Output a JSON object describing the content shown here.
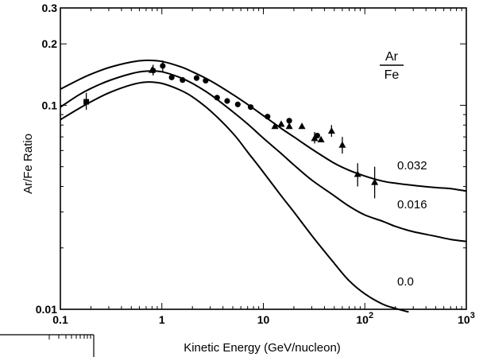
{
  "chart_data": {
    "type": "line",
    "title": "",
    "xlabel": "Kinetic Energy (GeV/nucleon)",
    "ylabel": "Ar/Fe Ratio",
    "x_scale": "log",
    "y_scale": "log",
    "xlim": [
      0.1,
      1000
    ],
    "ylim": [
      0.01,
      0.3
    ],
    "grid": false,
    "legend": {
      "text_num": "Ar",
      "text_den": "Fe",
      "placement": "top-right"
    },
    "x_tick_labels": [
      {
        "value": 0.1,
        "base": "0.1",
        "exp": ""
      },
      {
        "value": 1,
        "base": "1",
        "exp": ""
      },
      {
        "value": 10,
        "base": "10",
        "exp": ""
      },
      {
        "value": 100,
        "base": "10",
        "exp": "2"
      },
      {
        "value": 1000,
        "base": "10",
        "exp": "3"
      }
    ],
    "y_tick_labels": [
      {
        "value": 0.01,
        "label": "0.01"
      },
      {
        "value": 0.1,
        "label": "0.1"
      },
      {
        "value": 0.2,
        "label": "0.2"
      },
      {
        "value": 0.3,
        "label": "0.3"
      }
    ],
    "series": [
      {
        "name": "0.032",
        "x": [
          0.1,
          0.15,
          0.2,
          0.3,
          0.5,
          0.7,
          1,
          1.5,
          2,
          3,
          5,
          7,
          10,
          15,
          20,
          30,
          50,
          70,
          100,
          150,
          200,
          300,
          500,
          700,
          1000
        ],
        "y": [
          0.12,
          0.133,
          0.142,
          0.153,
          0.163,
          0.166,
          0.164,
          0.155,
          0.146,
          0.132,
          0.113,
          0.101,
          0.089,
          0.077,
          0.07,
          0.061,
          0.052,
          0.048,
          0.045,
          0.0425,
          0.0415,
          0.0405,
          0.0395,
          0.039,
          0.038
        ]
      },
      {
        "name": "0.016",
        "x": [
          0.1,
          0.15,
          0.2,
          0.3,
          0.5,
          0.7,
          1,
          1.5,
          2,
          3,
          5,
          7,
          10,
          15,
          20,
          30,
          50,
          70,
          100,
          150,
          200,
          300,
          500,
          700,
          1000
        ],
        "y": [
          0.098,
          0.112,
          0.121,
          0.132,
          0.143,
          0.147,
          0.146,
          0.137,
          0.128,
          0.113,
          0.093,
          0.081,
          0.069,
          0.058,
          0.051,
          0.043,
          0.036,
          0.032,
          0.029,
          0.027,
          0.0255,
          0.024,
          0.0228,
          0.022,
          0.0215
        ]
      },
      {
        "name": "0.0",
        "x": [
          0.1,
          0.15,
          0.2,
          0.3,
          0.5,
          0.7,
          1,
          1.5,
          2,
          3,
          5,
          7,
          10,
          15,
          20,
          30,
          50,
          70,
          100,
          150,
          200,
          270
        ],
        "y": [
          0.085,
          0.096,
          0.104,
          0.115,
          0.126,
          0.13,
          0.128,
          0.119,
          0.11,
          0.094,
          0.073,
          0.059,
          0.047,
          0.036,
          0.03,
          0.023,
          0.0168,
          0.0138,
          0.0119,
          0.0106,
          0.0101,
          0.0097
        ]
      }
    ],
    "markers": [
      {
        "shape": "square",
        "x": 0.18,
        "y": 0.104,
        "err": [
          0.095,
          0.115
        ]
      },
      {
        "shape": "circle",
        "x": 0.82,
        "y": 0.148,
        "err": [
          0.14,
          0.158
        ]
      },
      {
        "shape": "circle",
        "x": 1.02,
        "y": 0.156,
        "err": [
          0.146,
          0.166
        ]
      },
      {
        "shape": "circle",
        "x": 1.25,
        "y": 0.137
      },
      {
        "shape": "circle",
        "x": 1.6,
        "y": 0.133
      },
      {
        "shape": "circle",
        "x": 2.2,
        "y": 0.136
      },
      {
        "shape": "circle",
        "x": 2.7,
        "y": 0.132
      },
      {
        "shape": "circle",
        "x": 3.5,
        "y": 0.109
      },
      {
        "shape": "circle",
        "x": 4.4,
        "y": 0.105
      },
      {
        "shape": "circle",
        "x": 5.6,
        "y": 0.101
      },
      {
        "shape": "circle",
        "x": 7.5,
        "y": 0.098
      },
      {
        "shape": "circle",
        "x": 11,
        "y": 0.088
      },
      {
        "shape": "circle",
        "x": 18,
        "y": 0.084
      },
      {
        "shape": "circle",
        "x": 34,
        "y": 0.071
      },
      {
        "shape": "triangle",
        "x": 0.8,
        "y": 0.149
      },
      {
        "shape": "triangle",
        "x": 13,
        "y": 0.079
      },
      {
        "shape": "triangle",
        "x": 15,
        "y": 0.081
      },
      {
        "shape": "triangle",
        "x": 18,
        "y": 0.079
      },
      {
        "shape": "triangle",
        "x": 24,
        "y": 0.079
      },
      {
        "shape": "triangle",
        "x": 32,
        "y": 0.069,
        "err": [
          0.065,
          0.074
        ]
      },
      {
        "shape": "triangle",
        "x": 37,
        "y": 0.068
      },
      {
        "shape": "triangle",
        "x": 47,
        "y": 0.075,
        "err": [
          0.07,
          0.08
        ]
      },
      {
        "shape": "triangle",
        "x": 60,
        "y": 0.064,
        "err": [
          0.058,
          0.07
        ]
      },
      {
        "shape": "triangle",
        "x": 85,
        "y": 0.046,
        "err": [
          0.04,
          0.052
        ]
      },
      {
        "shape": "triangle",
        "x": 125,
        "y": 0.042,
        "err": [
          0.035,
          0.05
        ]
      }
    ],
    "colors": {
      "ink": "#000000",
      "background": "#ffffff"
    }
  }
}
